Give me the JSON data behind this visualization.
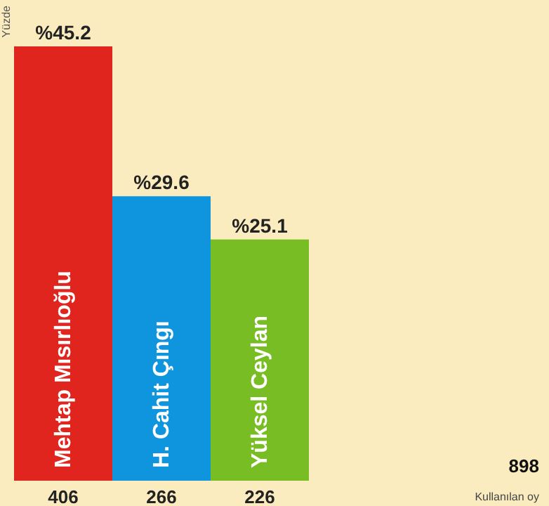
{
  "chart_data": {
    "type": "bar",
    "categories": [
      "Mehtap Mısırlıoğlu",
      "H. Cahit Çıngı",
      "Yüksel Ceylan"
    ],
    "values": [
      45.2,
      29.6,
      25.1
    ],
    "colors": [
      "#e0251e",
      "#0f95de",
      "#78bd23"
    ],
    "value_labels": [
      "%45.2",
      "%29.6",
      "%25.1"
    ],
    "ylabel": "Yüzde",
    "annotations": [
      "406",
      "266",
      "226",
      "898",
      "Kullanılan oy"
    ]
  }
}
